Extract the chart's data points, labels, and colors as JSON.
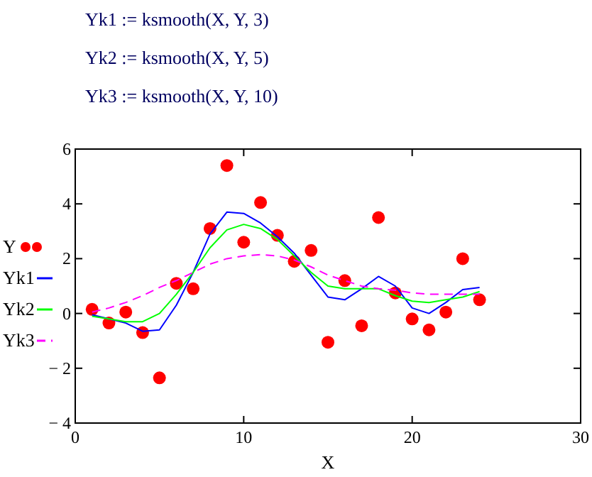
{
  "chart_data": {
    "type": "line",
    "annotations": [
      "Yk1 := ksmooth(X, Y, 3)",
      "Yk2 := ksmooth(X, Y, 5)",
      "Yk3 := ksmooth(X, Y, 10)"
    ],
    "xlabel": "X",
    "x": [
      1,
      2,
      3,
      4,
      5,
      6,
      7,
      8,
      9,
      10,
      11,
      12,
      13,
      14,
      15,
      16,
      17,
      18,
      19,
      20,
      21,
      22,
      23,
      24
    ],
    "series": [
      {
        "name": "Y",
        "type": "scatter",
        "marker": "circle",
        "color": "#ff0000",
        "values": [
          0.15,
          -0.35,
          0.05,
          -0.7,
          -2.35,
          1.1,
          0.9,
          3.1,
          5.4,
          2.6,
          4.05,
          2.85,
          1.9,
          2.3,
          -1.05,
          1.2,
          -0.45,
          3.5,
          0.75,
          -0.2,
          -0.6,
          0.05,
          2.0,
          0.5
        ]
      },
      {
        "name": "Yk1",
        "line_style": "solid",
        "color": "#0000ff",
        "values": [
          -0.05,
          -0.2,
          -0.35,
          -0.65,
          -0.6,
          0.3,
          1.5,
          2.9,
          3.7,
          3.65,
          3.3,
          2.8,
          2.2,
          1.4,
          0.6,
          0.5,
          0.9,
          1.35,
          1.0,
          0.2,
          0.0,
          0.4,
          0.87,
          0.95
        ]
      },
      {
        "name": "Yk2",
        "line_style": "solid",
        "color": "#00ff00",
        "values": [
          -0.1,
          -0.2,
          -0.3,
          -0.3,
          0.0,
          0.7,
          1.5,
          2.4,
          3.05,
          3.25,
          3.1,
          2.7,
          2.1,
          1.5,
          1.0,
          0.9,
          0.9,
          0.9,
          0.65,
          0.45,
          0.4,
          0.5,
          0.6,
          0.8
        ]
      },
      {
        "name": "Yk3",
        "line_style": "dashed",
        "color": "#ff00ff",
        "values": [
          0.05,
          0.2,
          0.4,
          0.65,
          0.95,
          1.2,
          1.5,
          1.8,
          2.0,
          2.1,
          2.15,
          2.1,
          1.95,
          1.7,
          1.4,
          1.2,
          1.0,
          0.9,
          0.85,
          0.75,
          0.7,
          0.7,
          0.7,
          0.7
        ]
      }
    ],
    "xlim": [
      0,
      30
    ],
    "xticks": [
      0,
      10,
      20,
      30
    ],
    "ylim": [
      -4,
      6
    ],
    "yticks": [
      {
        "value": -4,
        "label": "− 4"
      },
      {
        "value": -2,
        "label": "− 2"
      },
      0,
      2,
      4,
      6
    ],
    "grid": false,
    "legend": "left"
  }
}
